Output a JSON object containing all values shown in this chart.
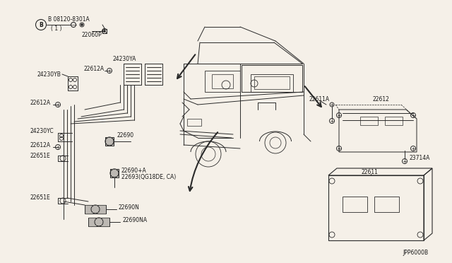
{
  "background_color": "#f5f0e8",
  "fig_width": 6.4,
  "fig_height": 3.72,
  "dpi": 100,
  "line_color": "#2a2a2a",
  "text_color": "#1a1a1a",
  "font_size": 5.5,
  "diagram_code": "JPP6000B",
  "img_bg": "#f5f0e8",
  "labels": {
    "bolt_top": "B 08120-8301A",
    "bolt_top_sub": "( 1 )",
    "part_22060P": "22060P",
    "part_24230YB": "24230YB",
    "part_24230YA": "24230YA",
    "part_22612A_top": "22612A",
    "part_22612A_mid": "22612A",
    "part_22612A_bot": "22612A",
    "part_24230YC": "24230YC",
    "part_22690": "22690",
    "part_22651E_top": "22651E",
    "part_22651E_bot": "22651E",
    "part_22690A": "22690+A",
    "part_22693": "22693(QG18DE, CA)",
    "part_22690N": "22690N",
    "part_22690NA": "22690NA",
    "part_22611A": "22611A",
    "part_22612_right": "22612",
    "part_23714A": "23714A",
    "part_22611_box": "22611"
  }
}
